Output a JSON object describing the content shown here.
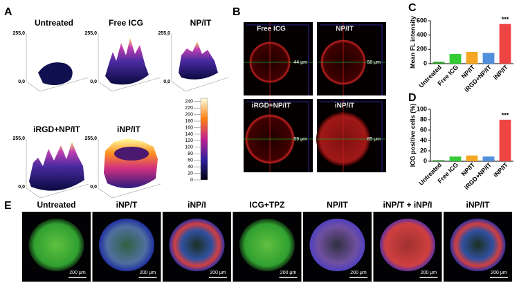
{
  "panels": {
    "A": {
      "label": "A",
      "z_top": "255,0",
      "z_bottom": "0,0",
      "plots": [
        "Untreated",
        "Free ICG",
        "NP/IT",
        "iRGD+NP/IT",
        "iNP/IT"
      ],
      "colorbar": {
        "lim": [
          0,
          250
        ],
        "ticks": [
          0,
          20,
          40,
          60,
          80,
          100,
          120,
          140,
          160,
          180,
          200,
          220,
          240
        ]
      }
    },
    "B": {
      "label": "B",
      "images": [
        {
          "title": "Free ICG",
          "measure": "44 μm"
        },
        {
          "title": "NP/IT",
          "measure": "58 μm"
        },
        {
          "title": "iRGD+NP/IT",
          "measure": "59 μm"
        },
        {
          "title": "iNP/IT",
          "measure": "89 μm"
        }
      ]
    },
    "C": {
      "label": "C"
    },
    "D": {
      "label": "D"
    },
    "E": {
      "label": "E",
      "scale_bar": "200 μm",
      "images": [
        "Untreated",
        "iNP/T",
        "iNP/I",
        "ICG+TPZ",
        "NP/IT",
        "iNP/T + iNP/I",
        "iNP/IT"
      ]
    }
  },
  "chart_data": [
    {
      "type": "bar",
      "ylabel": "Mean FL intensity",
      "categories": [
        "Untreated",
        "Free ICG",
        "NP/IT",
        "iRGD+NP/IT",
        "iNP/IT"
      ],
      "values": [
        25,
        135,
        165,
        150,
        555
      ],
      "colors": [
        "#2ca02c",
        "#33cc33",
        "#f5a623",
        "#4f8fdc",
        "#ef4444"
      ],
      "ylim": [
        0,
        600
      ],
      "yticks": [
        0,
        200,
        400,
        600
      ],
      "annotation": "***"
    },
    {
      "type": "bar",
      "ylabel": "ICG positive cells (%)",
      "categories": [
        "Untreated",
        "Free ICG",
        "NP/IT",
        "iRGD+NP/IT",
        "iNP/IT"
      ],
      "values": [
        2,
        9,
        11,
        9,
        80
      ],
      "colors": [
        "#2ca02c",
        "#33cc33",
        "#f5a623",
        "#4f8fdc",
        "#ef4444"
      ],
      "ylim": [
        0,
        100
      ],
      "yticks": [
        0,
        20,
        40,
        60,
        80,
        100
      ],
      "annotation": "***"
    }
  ]
}
